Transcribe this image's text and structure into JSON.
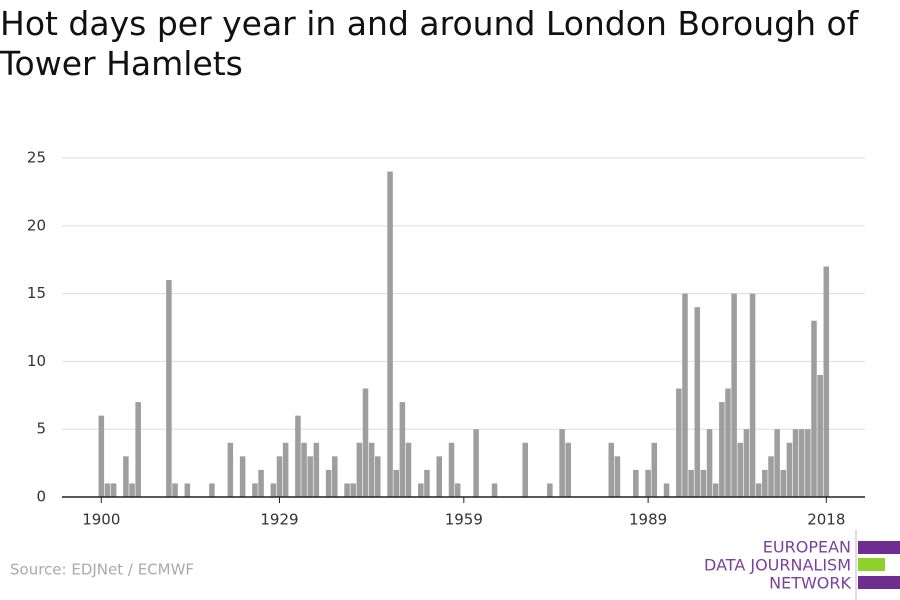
{
  "chart_data": {
    "type": "bar",
    "title": "Hot days per year in and around London Borough of Tower Hamlets",
    "source": "Source: EDJNet / ECMWF",
    "logo": [
      "EUROPEAN",
      "DATA JOURNALISM",
      "NETWORK"
    ],
    "color": "#9e9e9e",
    "x": [
      1900,
      1901,
      1902,
      1903,
      1904,
      1905,
      1906,
      1907,
      1908,
      1909,
      1910,
      1911,
      1912,
      1913,
      1914,
      1915,
      1916,
      1917,
      1918,
      1919,
      1920,
      1921,
      1922,
      1923,
      1924,
      1925,
      1926,
      1927,
      1928,
      1929,
      1930,
      1931,
      1932,
      1933,
      1934,
      1935,
      1936,
      1937,
      1938,
      1939,
      1940,
      1941,
      1942,
      1943,
      1944,
      1945,
      1946,
      1947,
      1948,
      1949,
      1950,
      1951,
      1952,
      1953,
      1954,
      1955,
      1956,
      1957,
      1958,
      1959,
      1960,
      1961,
      1962,
      1963,
      1964,
      1965,
      1966,
      1967,
      1968,
      1969,
      1970,
      1971,
      1972,
      1973,
      1974,
      1975,
      1976,
      1977,
      1978,
      1979,
      1980,
      1981,
      1982,
      1983,
      1984,
      1985,
      1986,
      1987,
      1988,
      1989,
      1990,
      1991,
      1992,
      1993,
      1994,
      1995,
      1996,
      1997,
      1998,
      1999,
      2000,
      2001,
      2002,
      2003,
      2004,
      2005,
      2006,
      2007,
      2008,
      2009,
      2010,
      2011,
      2012,
      2013,
      2014,
      2015,
      2016,
      2017,
      2018
    ],
    "values": [
      6,
      1,
      1,
      0,
      3,
      1,
      7,
      0,
      0,
      0,
      0,
      16,
      1,
      0,
      1,
      0,
      0,
      0,
      1,
      0,
      0,
      4,
      0,
      3,
      0,
      1,
      2,
      0,
      1,
      3,
      4,
      0,
      6,
      4,
      3,
      4,
      0,
      2,
      3,
      0,
      1,
      1,
      4,
      8,
      4,
      3,
      0,
      24,
      2,
      7,
      4,
      0,
      1,
      2,
      0,
      3,
      0,
      4,
      1,
      0,
      0,
      5,
      0,
      0,
      1,
      0,
      0,
      0,
      0,
      4,
      0,
      0,
      0,
      1,
      0,
      5,
      4,
      0,
      0,
      0,
      0,
      0,
      0,
      4,
      3,
      0,
      0,
      2,
      0,
      2,
      4,
      0,
      1,
      0,
      8,
      15,
      2,
      14,
      2,
      5,
      1,
      7,
      8,
      15,
      4,
      5,
      15,
      1,
      2,
      3,
      5,
      2,
      4,
      5,
      5,
      5,
      13,
      9,
      17
    ],
    "xlim": [
      1893.6,
      2024.3
    ],
    "xticks": [
      1900,
      1929,
      1959,
      1989,
      2018
    ],
    "ylim": [
      0,
      25
    ],
    "yticks": [
      0,
      5,
      10,
      15,
      20,
      25
    ],
    "grid": true
  }
}
